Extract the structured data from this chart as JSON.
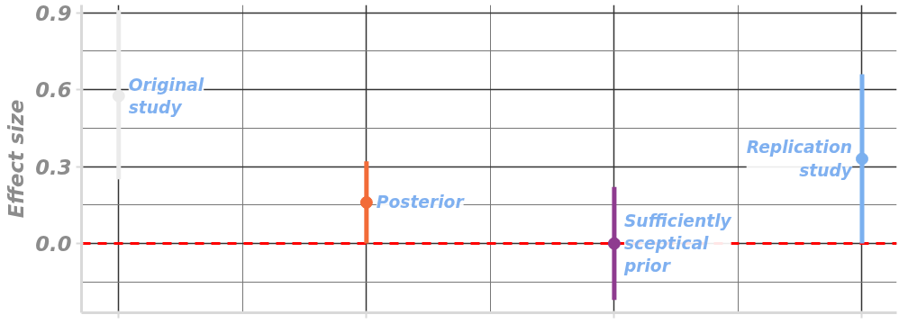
{
  "chart_data": {
    "type": "scatter",
    "ylabel": "Effect size",
    "categories": [
      null,
      null,
      null,
      null
    ],
    "series": [
      {
        "name": "Original study",
        "color": "#ebebeb",
        "values": [
          0.575,
          null,
          null,
          null
        ],
        "errors": [
          [
            0.25,
            0.91
          ],
          null,
          null,
          null
        ]
      },
      {
        "name": "Posterior",
        "color": "#f26b38",
        "values": [
          null,
          0.16,
          null,
          null
        ],
        "errors": [
          null,
          [
            0.0,
            0.32
          ],
          null,
          null
        ]
      },
      {
        "name": "Sufficiently sceptical prior",
        "color": "#8e3b8f",
        "values": [
          null,
          null,
          0.0,
          null
        ],
        "errors": [
          null,
          null,
          [
            -0.22,
            0.22
          ],
          null
        ]
      },
      {
        "name": "Replication study",
        "color": "#7bb0ef",
        "values": [
          null,
          null,
          null,
          0.33
        ],
        "errors": [
          null,
          null,
          null,
          [
            0.0,
            0.66
          ]
        ]
      }
    ],
    "ylim": [
      -0.27,
      0.93
    ],
    "yticks": [
      {
        "value": 0.0,
        "label": "0.0"
      },
      {
        "value": 0.3,
        "label": "0.3"
      },
      {
        "value": 0.6,
        "label": "0.6"
      },
      {
        "value": 0.9,
        "label": "0.9"
      }
    ],
    "ref_lines": [
      {
        "axis": "y",
        "value": 0,
        "label": null,
        "color": "#ff0000",
        "line_style": "dashed"
      }
    ],
    "grid": true,
    "marker": "circle",
    "tick_labels": "y"
  }
}
